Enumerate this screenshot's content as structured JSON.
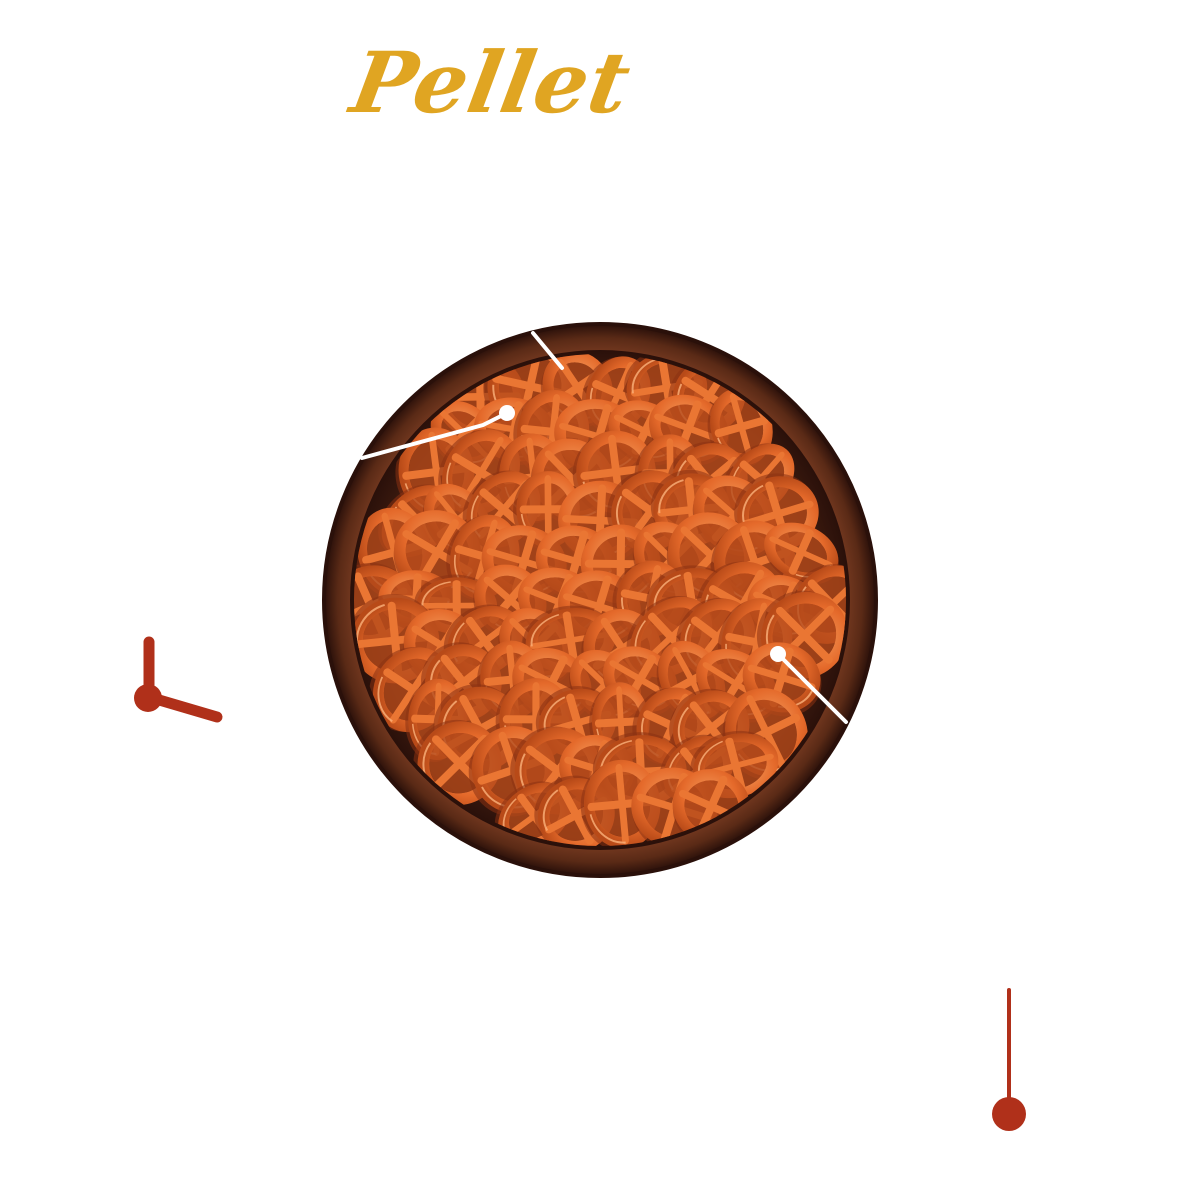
{
  "title": "Pellet",
  "colors": {
    "title": "#e0a522",
    "accent_red": "#b0301a",
    "bowl_dark": "#3a1a0f",
    "bowl_mid": "#6b3520",
    "snack_orange": "#e46a2a",
    "snack_light": "#f08a48",
    "pointer_line": "#ffffff"
  },
  "icons": {
    "bowl": "wooden-bowl-of-wheel-shaped-snack-pellets",
    "pellet": "wheel-shaped-pellet",
    "decor_left": "red-clock-hands-decoration",
    "decor_right": "red-pin-decoration"
  }
}
